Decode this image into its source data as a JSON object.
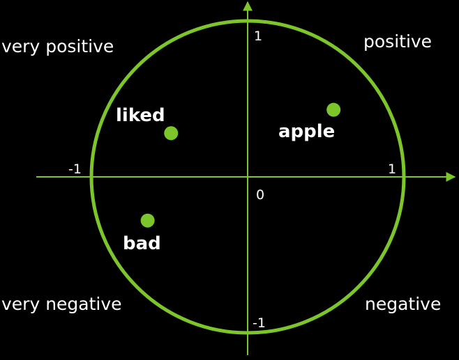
{
  "diagram": {
    "colors": {
      "background": "#000000",
      "accent": "#7cc62b",
      "text": "#ffffff"
    },
    "quadrant_labels": {
      "top_left": "very positive",
      "top_right": "positive",
      "bottom_left": "very negative",
      "bottom_right": "negative"
    },
    "ticks": {
      "y_pos": "1",
      "y_neg": "-1",
      "x_pos": "1",
      "x_neg": "-1",
      "origin": "0"
    },
    "points": [
      {
        "label": "liked",
        "x": -0.49,
        "y": 0.28
      },
      {
        "label": "apple",
        "x": 0.55,
        "y": 0.43
      },
      {
        "label": "bad",
        "x": -0.64,
        "y": -0.28
      }
    ]
  }
}
